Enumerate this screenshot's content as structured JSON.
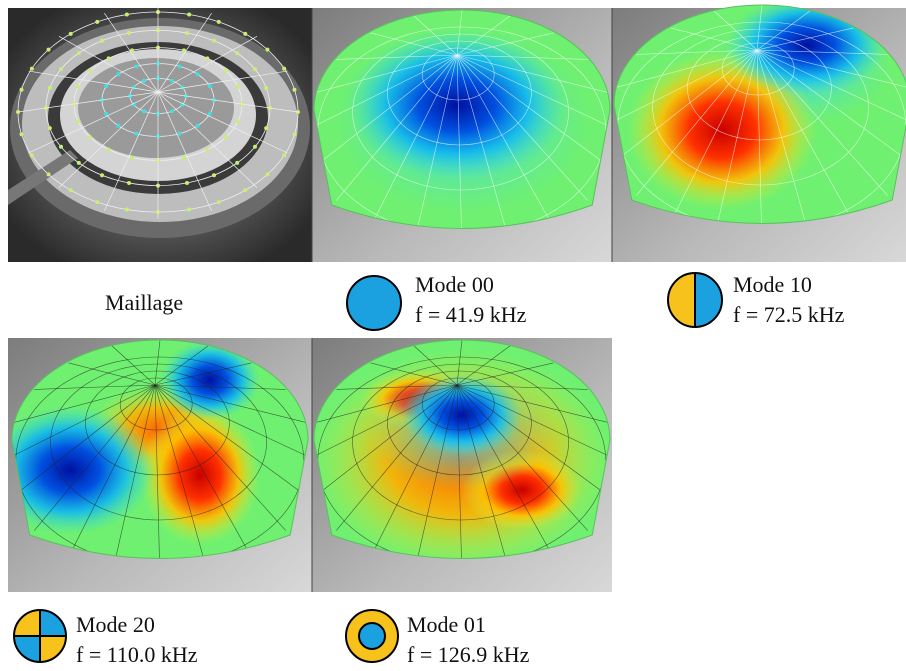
{
  "panels": [
    {
      "caption": "Maillage"
    },
    {
      "mode": "Mode 00",
      "frequency": "f = 41.9 kHz"
    },
    {
      "mode": "Mode 10",
      "frequency": "f = 72.5 kHz"
    },
    {
      "mode": "Mode 20",
      "frequency": "f = 110.0 kHz"
    },
    {
      "mode": "Mode 01",
      "frequency": "f = 126.9 kHz"
    }
  ]
}
